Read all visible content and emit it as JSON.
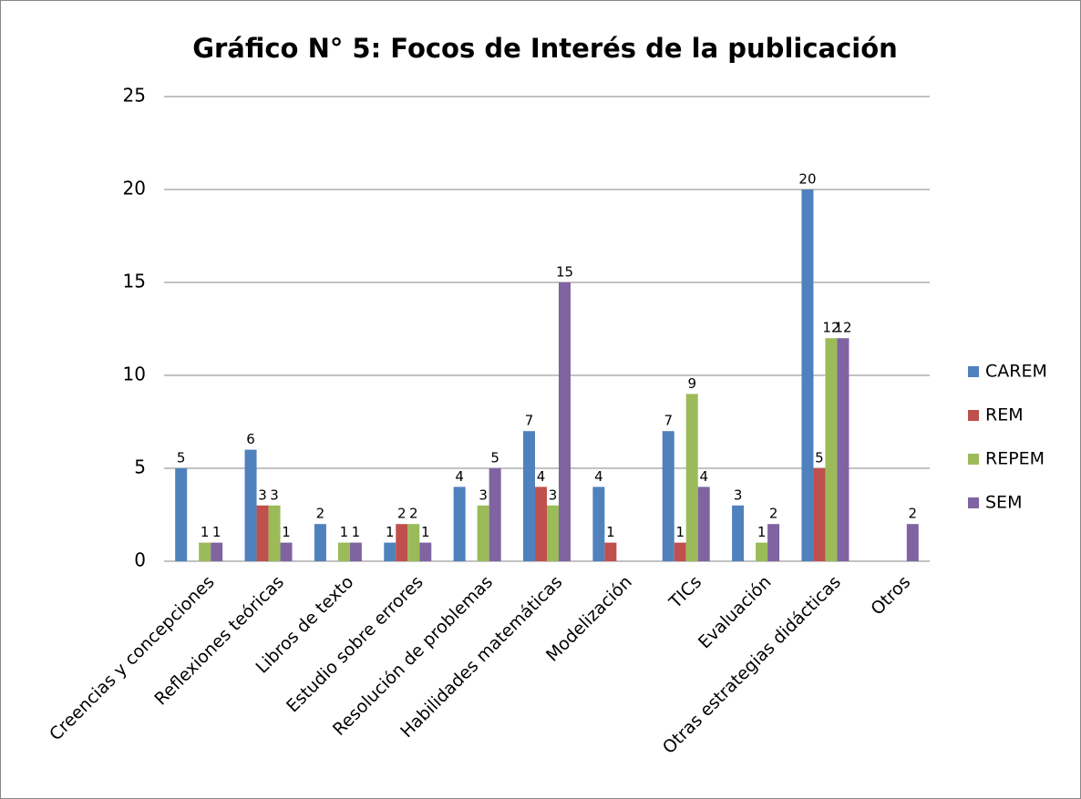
{
  "chart_data": {
    "type": "bar",
    "title": "Gráfico N° 5: Focos de Interés de la publicación",
    "categories": [
      "Creencias y concepciones",
      "Reflexiones teóricas",
      "Libros de texto",
      "Estudio sobre errores",
      "Resolución de problemas",
      "Habilidades matemáticas",
      "Modelización",
      "TICs",
      "Evaluación",
      "Otras estrategias didácticas",
      "Otros"
    ],
    "series": [
      {
        "name": "CAREM",
        "color": "#4f81bd",
        "values": [
          5,
          6,
          2,
          1,
          4,
          7,
          4,
          7,
          3,
          20,
          null
        ]
      },
      {
        "name": "REM",
        "color": "#c0504d",
        "values": [
          null,
          3,
          null,
          2,
          null,
          4,
          1,
          1,
          null,
          5,
          null
        ]
      },
      {
        "name": "REPEM",
        "color": "#9bbb59",
        "values": [
          1,
          3,
          1,
          2,
          3,
          3,
          null,
          9,
          1,
          12,
          null
        ]
      },
      {
        "name": "SEM",
        "color": "#8064a2",
        "values": [
          1,
          1,
          1,
          1,
          5,
          15,
          null,
          4,
          2,
          12,
          2
        ]
      }
    ],
    "ylim": [
      0,
      25
    ],
    "yticks": [
      0,
      5,
      10,
      15,
      20,
      25
    ],
    "grid": true,
    "legend": "right"
  }
}
